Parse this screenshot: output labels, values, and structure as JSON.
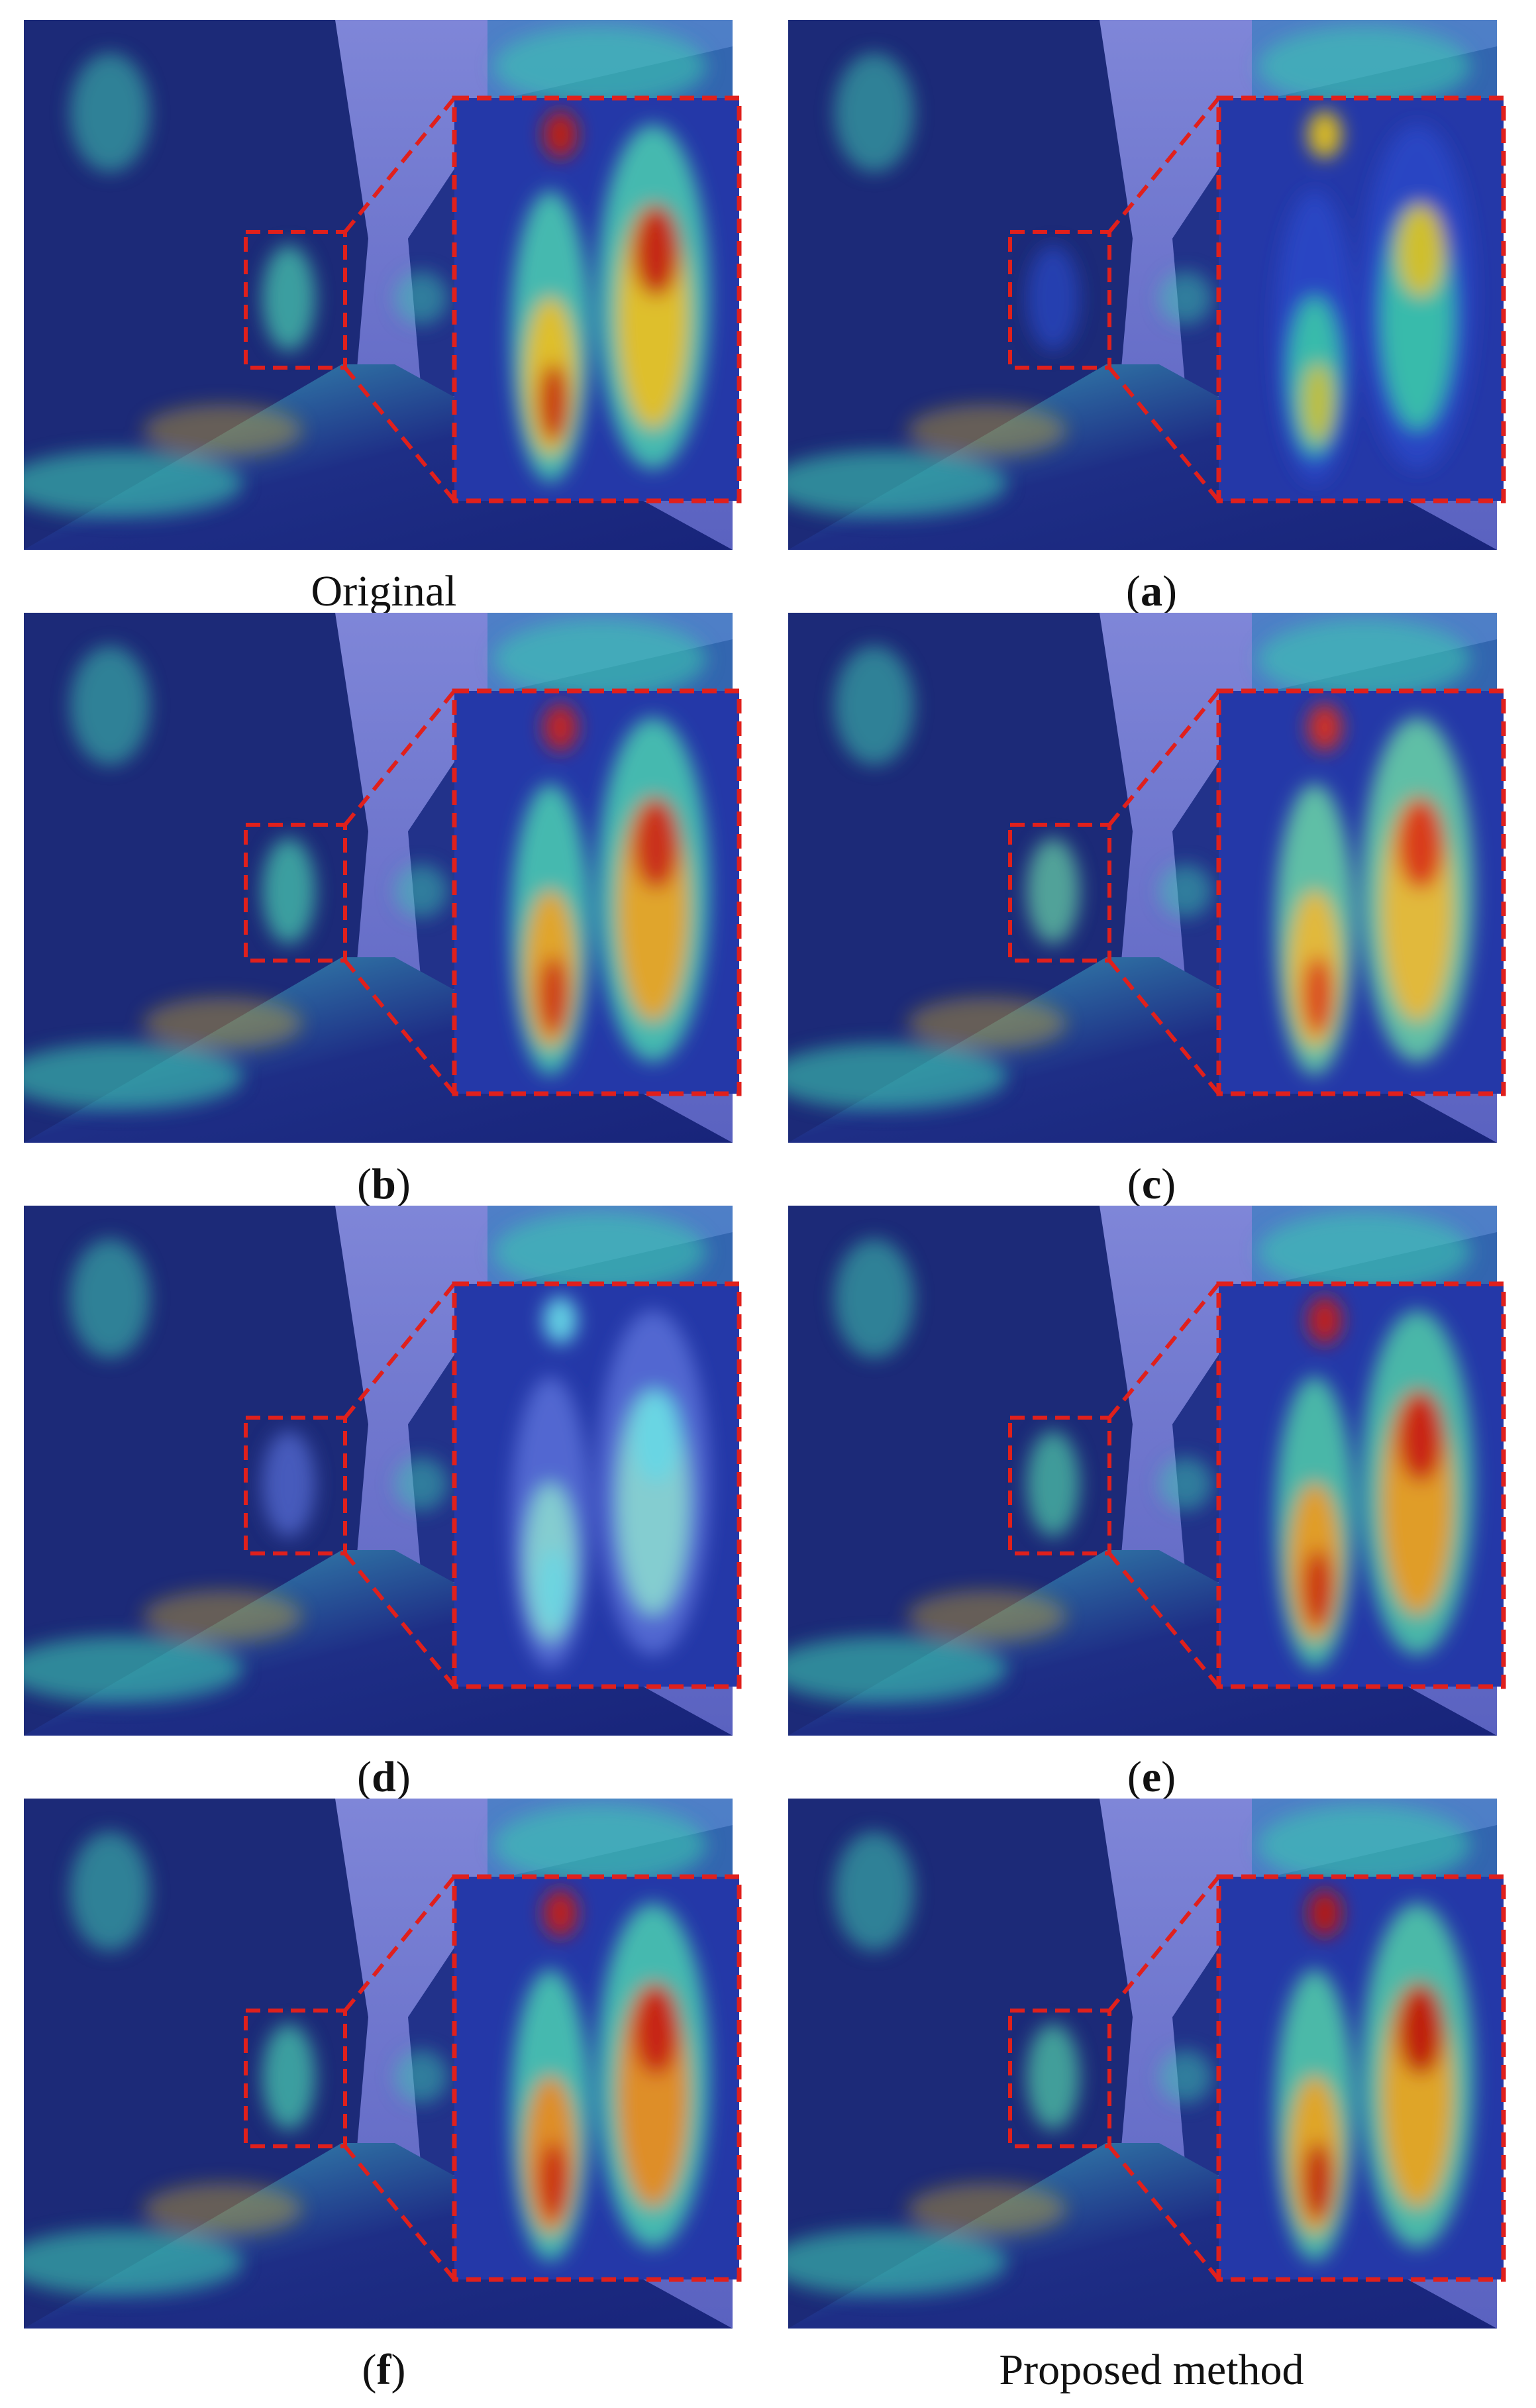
{
  "figure": {
    "panels": [
      {
        "id": "original",
        "caption": "Original",
        "bold": false,
        "zoom_colors": [
          "#c21a12",
          "#f0c020",
          "#4ad0b0"
        ]
      },
      {
        "id": "a",
        "caption": "a",
        "bold": true,
        "zoom_colors": [
          "#e0c020",
          "#39c8a8",
          "#2a48c8"
        ]
      },
      {
        "id": "b",
        "caption": "b",
        "bold": true,
        "zoom_colors": [
          "#c8241a",
          "#f2a41e",
          "#4ad0b0"
        ]
      },
      {
        "id": "c",
        "caption": "c",
        "bold": true,
        "zoom_colors": [
          "#d8301a",
          "#f0b830",
          "#6ad6a6"
        ]
      },
      {
        "id": "d",
        "caption": "d",
        "bold": true,
        "zoom_colors": [
          "#66d6e6",
          "#8ad8d0",
          "#5a70d8"
        ]
      },
      {
        "id": "e",
        "caption": "e",
        "bold": true,
        "zoom_colors": [
          "#c61c16",
          "#f29a1c",
          "#50cca8"
        ]
      },
      {
        "id": "f",
        "caption": "f",
        "bold": true,
        "zoom_colors": [
          "#c41a14",
          "#f08a1a",
          "#4ad0b0"
        ]
      },
      {
        "id": "proposed",
        "caption": "Proposed method",
        "bold": false,
        "zoom_colors": [
          "#bb1410",
          "#f0a41a",
          "#52d0a8"
        ]
      }
    ],
    "colors": {
      "sky": "#7f86d8",
      "building": "#1c2a78",
      "road": "#1e2e86",
      "heat_hot": "#d8241a",
      "heat_warm": "#f0c020",
      "heat_cool": "#3ec8b0",
      "zoom_border": "#e0201c"
    }
  }
}
